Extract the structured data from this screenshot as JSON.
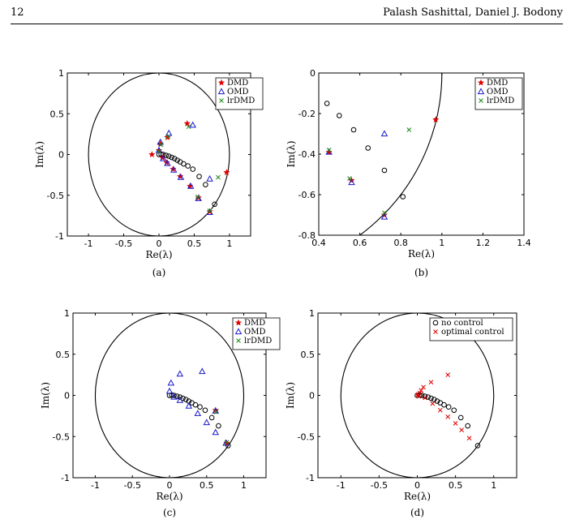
{
  "header": {
    "page_number": "12",
    "running_head": "Palash Sashittal, Daniel J. Bodony"
  },
  "chart_data": [
    {
      "type": "scatter",
      "caption": "(a)",
      "xlabel": "Re(λ)",
      "ylabel": "Im(λ)",
      "xlim": [
        -1.3,
        1.3
      ],
      "ylim": [
        -1,
        1
      ],
      "xticks": [
        "-1",
        "-0.5",
        "0",
        "0.5",
        "1"
      ],
      "yticks": [
        "1",
        "0.5",
        "0",
        "-0.5",
        "-1"
      ],
      "unit_circle": true,
      "legend_position": "top-right",
      "series": [
        {
          "name": "",
          "marker": "circle",
          "color": "#000000",
          "points": [
            [
              0.0,
              0.0
            ],
            [
              0.03,
              0.005
            ],
            [
              0.06,
              0.0
            ],
            [
              0.1,
              -0.01
            ],
            [
              0.14,
              -0.02
            ],
            [
              0.18,
              -0.035
            ],
            [
              0.22,
              -0.05
            ],
            [
              0.26,
              -0.07
            ],
            [
              0.3,
              -0.09
            ],
            [
              0.35,
              -0.115
            ],
            [
              0.41,
              -0.14
            ],
            [
              0.48,
              -0.18
            ],
            [
              0.57,
              -0.27
            ],
            [
              0.66,
              -0.37
            ],
            [
              0.79,
              -0.61
            ]
          ]
        },
        {
          "name": "DMD",
          "marker": "star",
          "color": "#e00000",
          "points": [
            [
              -0.1,
              0.0
            ],
            [
              0.0,
              0.05
            ],
            [
              0.02,
              0.13
            ],
            [
              0.12,
              0.21
            ],
            [
              0.4,
              0.38
            ],
            [
              0.96,
              -0.22
            ],
            [
              0.72,
              -0.7
            ],
            [
              0.56,
              -0.53
            ],
            [
              0.44,
              -0.39
            ],
            [
              0.3,
              -0.27
            ],
            [
              0.2,
              -0.18
            ],
            [
              0.11,
              -0.1
            ],
            [
              0.05,
              -0.04
            ]
          ]
        },
        {
          "name": "OMD",
          "marker": "triangle",
          "color": "#1a1acc",
          "points": [
            [
              0.0,
              0.05
            ],
            [
              0.02,
              0.15
            ],
            [
              0.14,
              0.26
            ],
            [
              0.48,
              0.36
            ],
            [
              0.72,
              -0.3
            ],
            [
              0.72,
              -0.71
            ],
            [
              0.56,
              -0.54
            ],
            [
              0.45,
              -0.39
            ],
            [
              0.31,
              -0.28
            ],
            [
              0.21,
              -0.19
            ],
            [
              0.12,
              -0.11
            ],
            [
              0.06,
              -0.05
            ]
          ]
        },
        {
          "name": "lrDMD",
          "marker": "x",
          "color": "#1a8a1a",
          "points": [
            [
              0.0,
              0.04
            ],
            [
              0.03,
              0.12
            ],
            [
              0.13,
              0.22
            ],
            [
              0.42,
              0.34
            ],
            [
              0.84,
              -0.28
            ],
            [
              0.72,
              -0.69
            ],
            [
              0.55,
              -0.52
            ]
          ]
        }
      ]
    },
    {
      "type": "scatter",
      "caption": "(b)",
      "xlabel": "Re(λ)",
      "ylabel": "Im(λ)",
      "xlim": [
        0.4,
        1.4
      ],
      "ylim": [
        -0.8,
        0
      ],
      "xticks": [
        "0.4",
        "0.6",
        "0.8",
        "1",
        "1.2",
        "1.4"
      ],
      "yticks": [
        "0",
        "-0.2",
        "-0.4",
        "-0.6",
        "-0.8"
      ],
      "unit_circle": true,
      "legend_position": "top-right",
      "series": [
        {
          "name": "",
          "marker": "circle",
          "color": "#000000",
          "points": [
            [
              0.44,
              -0.15
            ],
            [
              0.5,
              -0.21
            ],
            [
              0.57,
              -0.28
            ],
            [
              0.64,
              -0.37
            ],
            [
              0.72,
              -0.48
            ],
            [
              0.81,
              -0.61
            ]
          ]
        },
        {
          "name": "DMD",
          "marker": "star",
          "color": "#e00000",
          "points": [
            [
              0.97,
              -0.23
            ],
            [
              0.72,
              -0.7
            ],
            [
              0.56,
              -0.53
            ],
            [
              0.45,
              -0.39
            ]
          ]
        },
        {
          "name": "OMD",
          "marker": "triangle",
          "color": "#1a1acc",
          "points": [
            [
              0.72,
              -0.3
            ],
            [
              0.72,
              -0.71
            ],
            [
              0.56,
              -0.54
            ],
            [
              0.45,
              -0.39
            ]
          ]
        },
        {
          "name": "lrDMD",
          "marker": "x",
          "color": "#1a8a1a",
          "points": [
            [
              0.84,
              -0.28
            ],
            [
              0.72,
              -0.69
            ],
            [
              0.55,
              -0.52
            ],
            [
              0.45,
              -0.38
            ]
          ]
        }
      ]
    },
    {
      "type": "scatter",
      "caption": "(c)",
      "xlabel": "Re(λ)",
      "ylabel": "Im(λ)",
      "xlim": [
        -1.3,
        1.3
      ],
      "ylim": [
        -1,
        1
      ],
      "xticks": [
        "-1",
        "-0.5",
        "0",
        "0.5",
        "1"
      ],
      "yticks": [
        "1",
        "0.5",
        "0",
        "-0.5",
        "-1"
      ],
      "unit_circle": true,
      "legend_position": "top-right",
      "series": [
        {
          "name": "",
          "marker": "circle",
          "color": "#000000",
          "points": [
            [
              0.0,
              0.0
            ],
            [
              0.03,
              0.005
            ],
            [
              0.06,
              0.0
            ],
            [
              0.1,
              -0.01
            ],
            [
              0.14,
              -0.02
            ],
            [
              0.18,
              -0.035
            ],
            [
              0.22,
              -0.05
            ],
            [
              0.26,
              -0.07
            ],
            [
              0.3,
              -0.09
            ],
            [
              0.35,
              -0.115
            ],
            [
              0.41,
              -0.14
            ],
            [
              0.48,
              -0.18
            ],
            [
              0.57,
              -0.27
            ],
            [
              0.66,
              -0.37
            ],
            [
              0.79,
              -0.61
            ]
          ]
        },
        {
          "name": "DMD",
          "marker": "star",
          "color": "#e00000",
          "points": [
            [
              0.62,
              -0.18
            ],
            [
              0.77,
              -0.58
            ]
          ]
        },
        {
          "name": "OMD",
          "marker": "triangle",
          "color": "#1a1acc",
          "points": [
            [
              0.0,
              0.05
            ],
            [
              0.02,
              0.15
            ],
            [
              0.14,
              0.26
            ],
            [
              0.44,
              0.29
            ],
            [
              0.62,
              -0.19
            ],
            [
              0.76,
              -0.58
            ],
            [
              0.62,
              -0.45
            ],
            [
              0.5,
              -0.33
            ],
            [
              0.38,
              -0.22
            ],
            [
              0.26,
              -0.13
            ],
            [
              0.14,
              -0.06
            ],
            [
              0.06,
              -0.02
            ]
          ]
        },
        {
          "name": "lrDMD",
          "marker": "x",
          "color": "#1a8a1a",
          "points": [
            [
              0.63,
              -0.2
            ],
            [
              0.77,
              -0.57
            ]
          ]
        }
      ]
    },
    {
      "type": "scatter",
      "caption": "(d)",
      "xlabel": "Re(λ)",
      "ylabel": "Im(λ)",
      "xlim": [
        -1.3,
        1.3
      ],
      "ylim": [
        -1,
        1
      ],
      "xticks": [
        "-1",
        "-0.5",
        "0",
        "0.5",
        "1"
      ],
      "yticks": [
        "1",
        "0.5",
        "0",
        "-0.5",
        "-1"
      ],
      "unit_circle": true,
      "legend_position": "top-right",
      "series": [
        {
          "name": "no control",
          "marker": "circle",
          "color": "#000000",
          "points": [
            [
              0.0,
              0.0
            ],
            [
              0.03,
              0.005
            ],
            [
              0.06,
              0.0
            ],
            [
              0.1,
              -0.01
            ],
            [
              0.14,
              -0.02
            ],
            [
              0.18,
              -0.035
            ],
            [
              0.22,
              -0.05
            ],
            [
              0.26,
              -0.07
            ],
            [
              0.3,
              -0.09
            ],
            [
              0.35,
              -0.115
            ],
            [
              0.41,
              -0.14
            ],
            [
              0.48,
              -0.18
            ],
            [
              0.57,
              -0.27
            ],
            [
              0.66,
              -0.37
            ],
            [
              0.79,
              -0.61
            ]
          ]
        },
        {
          "name": "optimal control",
          "marker": "x",
          "color": "#e00000",
          "points": [
            [
              0.0,
              0.0
            ],
            [
              0.01,
              0.01
            ],
            [
              0.02,
              -0.01
            ],
            [
              0.03,
              0.03
            ],
            [
              0.05,
              0.06
            ],
            [
              0.08,
              0.1
            ],
            [
              0.18,
              0.16
            ],
            [
              0.4,
              0.25
            ],
            [
              0.1,
              -0.03
            ],
            [
              0.2,
              -0.1
            ],
            [
              0.3,
              -0.18
            ],
            [
              0.4,
              -0.26
            ],
            [
              0.5,
              -0.34
            ],
            [
              0.58,
              -0.42
            ],
            [
              0.68,
              -0.52
            ]
          ]
        }
      ]
    }
  ]
}
